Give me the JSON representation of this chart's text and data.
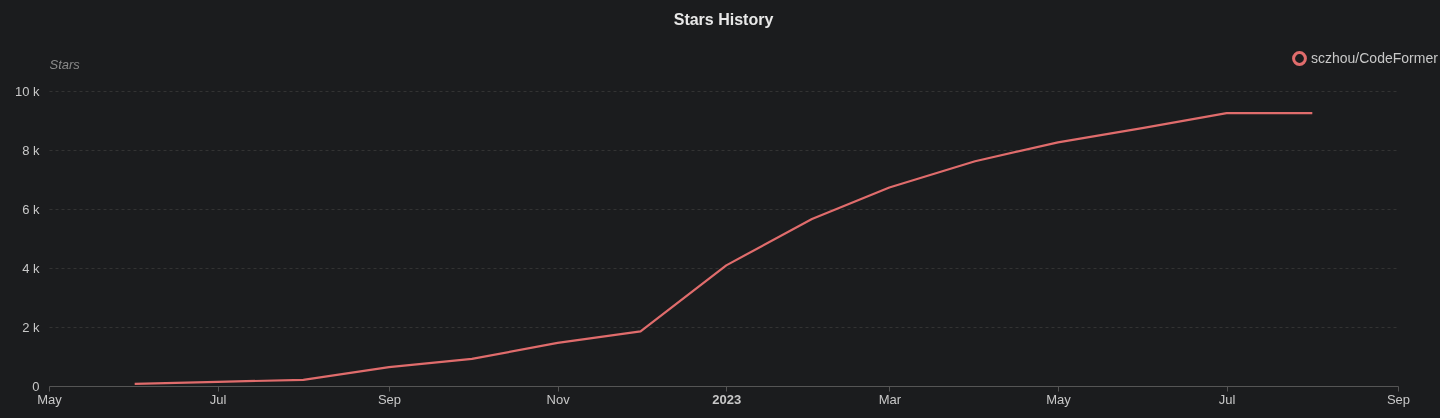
{
  "chart_data": {
    "type": "line",
    "title": "Stars History",
    "ylabel": "Stars",
    "x": [
      "2022-06-01",
      "2022-07-01",
      "2022-08-01",
      "2022-09-01",
      "2022-10-01",
      "2022-11-01",
      "2022-12-01",
      "2023-01-01",
      "2023-02-01",
      "2023-03-01",
      "2023-04-01",
      "2023-05-01",
      "2023-06-01",
      "2023-07-01",
      "2023-08-01"
    ],
    "series": [
      {
        "name": "sczhou/CodeFormer",
        "color": "#e06c6c",
        "values": [
          70,
          140,
          210,
          640,
          920,
          1460,
          1850,
          4090,
          5660,
          6730,
          7620,
          8260,
          8750,
          9250,
          9250
        ]
      }
    ],
    "xlim": [
      "2022-05-01",
      "2023-09-01"
    ],
    "xticks": [
      {
        "value": "2022-05-01",
        "label": "May"
      },
      {
        "value": "2022-07-01",
        "label": "Jul"
      },
      {
        "value": "2022-09-01",
        "label": "Sep"
      },
      {
        "value": "2022-11-01",
        "label": "Nov"
      },
      {
        "value": "2023-01-01",
        "label": "2023"
      },
      {
        "value": "2023-03-01",
        "label": "Mar"
      },
      {
        "value": "2023-05-01",
        "label": "May"
      },
      {
        "value": "2023-07-01",
        "label": "Jul"
      },
      {
        "value": "2023-09-01",
        "label": "Sep"
      }
    ],
    "ylim": [
      0,
      10000
    ],
    "yticks": [
      {
        "value": 0,
        "label": "0"
      },
      {
        "value": 2000,
        "label": "2 k"
      },
      {
        "value": 4000,
        "label": "4 k"
      },
      {
        "value": 6000,
        "label": "6 k"
      },
      {
        "value": 8000,
        "label": "8 k"
      },
      {
        "value": 10000,
        "label": "10 k"
      }
    ],
    "grid": "y",
    "legend": "top right",
    "line_style": "solid"
  }
}
